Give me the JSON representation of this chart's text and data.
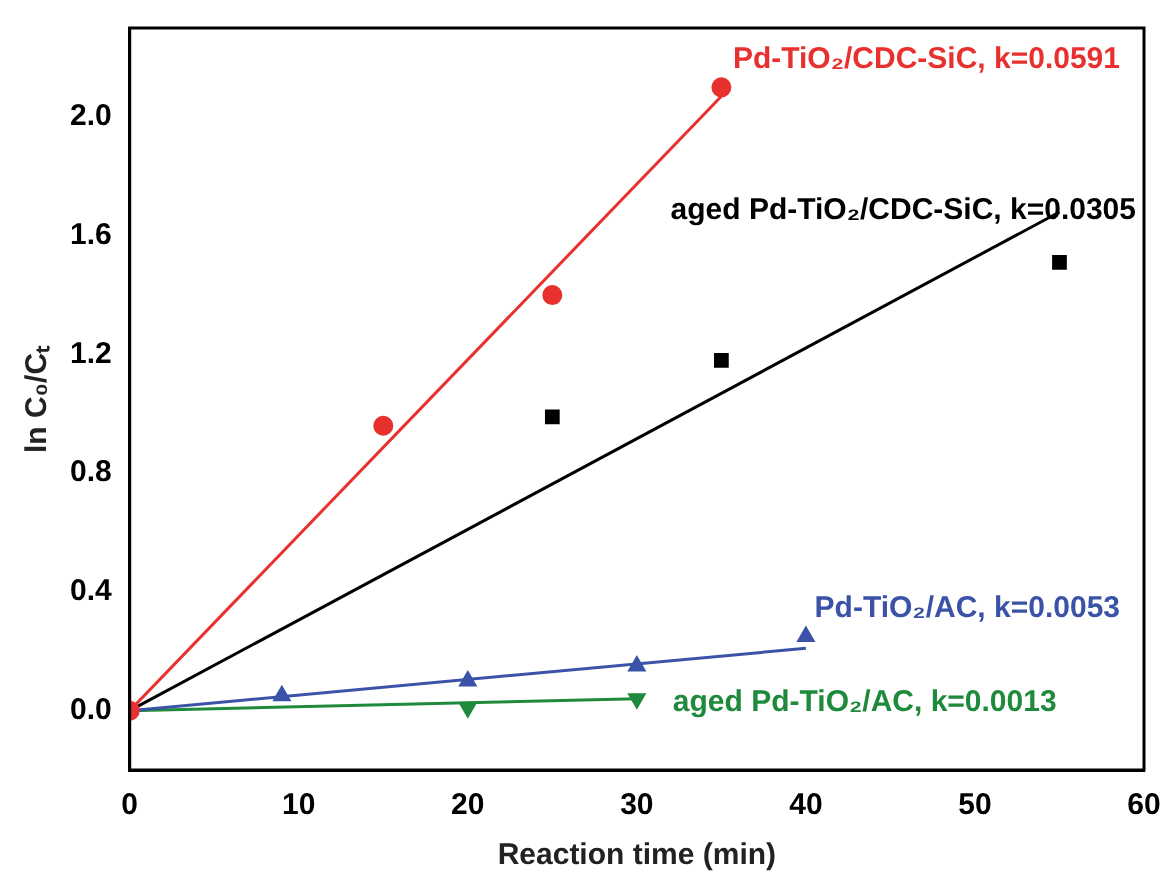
{
  "chart_data": {
    "type": "scatter",
    "xlabel": "Reaction time (min)",
    "ylabel": "ln C₀/Cₜ",
    "xlim": [
      0,
      60
    ],
    "xticks": [
      0,
      10,
      20,
      30,
      40,
      50,
      60
    ],
    "ylim": [
      -0.2,
      2.3
    ],
    "yticks": [
      {
        "value": 0,
        "label": "0.0"
      },
      {
        "value": 0.4,
        "label": "0.4"
      },
      {
        "value": 0.8,
        "label": "0.8"
      },
      {
        "value": 1.2,
        "label": "1.2"
      },
      {
        "value": 1.6,
        "label": "1.6"
      },
      {
        "value": 2.0,
        "label": "2.0"
      }
    ],
    "grid": false,
    "legend": false,
    "series": [
      {
        "name": "Pd-TiO₂/CDC-SiC, k=0.0591",
        "color": "#e8312f",
        "marker": "circle",
        "x": [
          0,
          15,
          25,
          35
        ],
        "values": [
          0,
          0.96,
          1.4,
          2.1
        ]
      },
      {
        "name": "aged Pd-TiO₂/CDC-SiC, k=0.0305",
        "color": "#000000",
        "marker": "square",
        "x": [
          25,
          35,
          55
        ],
        "values": [
          0.99,
          1.18,
          1.51
        ]
      },
      {
        "name": "Pd-TiO₂/AC, k=0.0053",
        "color": "#3a52a8",
        "marker": "triangle",
        "x": [
          9,
          20,
          30,
          40
        ],
        "values": [
          0.05,
          0.1,
          0.15,
          0.25
        ]
      },
      {
        "name": "aged Pd-TiO₂/AC, k=0.0013",
        "color": "#1f8a3c",
        "marker": "triangle-down",
        "x": [
          20,
          30
        ],
        "values": [
          0.01,
          0.04
        ]
      },
      {
        "type": "line",
        "color": "#e8312f",
        "marker": "none",
        "x": [
          0,
          35
        ],
        "values": [
          0,
          2.07
        ]
      },
      {
        "type": "line",
        "color": "#000000",
        "marker": "none",
        "x": [
          0,
          55
        ],
        "values": [
          0,
          1.68
        ]
      },
      {
        "type": "line",
        "color": "#3a52a8",
        "marker": "none",
        "x": [
          0,
          40
        ],
        "values": [
          0,
          0.21
        ]
      },
      {
        "type": "line",
        "color": "#1f8a3c",
        "marker": "none",
        "x": [
          0,
          30
        ],
        "values": [
          0,
          0.04
        ]
      }
    ]
  }
}
